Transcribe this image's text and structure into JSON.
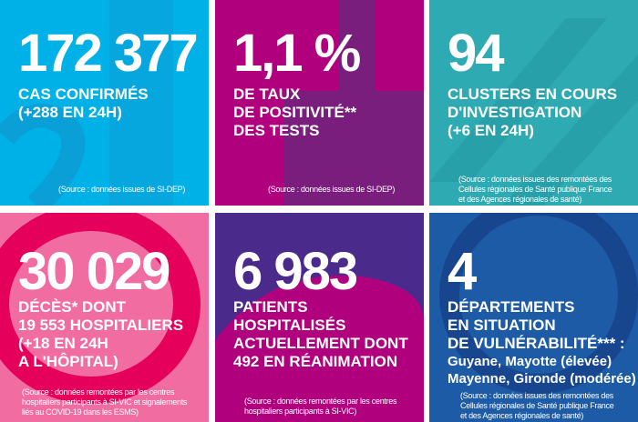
{
  "colors": {
    "cases": "#00b1e7",
    "positivity": "#b0007e",
    "clusters": "#2eaab2",
    "deaths": "#f06ca1",
    "hospital": "#b0007e",
    "vulnerability": "#1d5ba6"
  },
  "tiles": [
    {
      "value": "172 377",
      "label": "CAS CONFIRMÉS\n(+288 EN 24H)",
      "source": "(Source : données issues de SI-DEP)"
    },
    {
      "value": "1,1 %",
      "label": "DE TAUX\nDE POSITIVITÉ**\nDES TESTS",
      "source": "(Source : données issues de SI-DEP)"
    },
    {
      "value": "94",
      "label": "CLUSTERS EN COURS\nD'INVESTIGATION\n(+6 EN 24H)",
      "source": "(Source : données issues des remontées des\nCellules régionales de Santé publique France\net des Agences régionales de santé)"
    },
    {
      "value": "30 029",
      "label": "DÉCÈS* DONT\n19 553 HOSPITALIERS\n(+18 EN 24H\nA L'HÔPITAL)",
      "source": "(Source : données remontées par les centres\nhospitaliers participants à SI-VIC et signalements\nliés au COVID-19 dans les ESMS)"
    },
    {
      "value": "6 983",
      "label": "PATIENTS\nHOSPITALISÉS\nACTUELLEMENT DONT\n492 EN RÉANIMATION",
      "source": "(Source : données remontées par les centres\nhospitaliers participants à SI-VIC)"
    },
    {
      "value": "4",
      "label": "DÉPARTEMENTS\nEN SITUATION\nDE VULNÉRABILITÉ*** :",
      "detail": "Guyane, Mayotte (élevée)\nMayenne, Gironde (modérée)",
      "source": "(Source : données issues des remontées des\nCellules régionales de Santé publique France\net des Agences régionales de santé)"
    }
  ]
}
